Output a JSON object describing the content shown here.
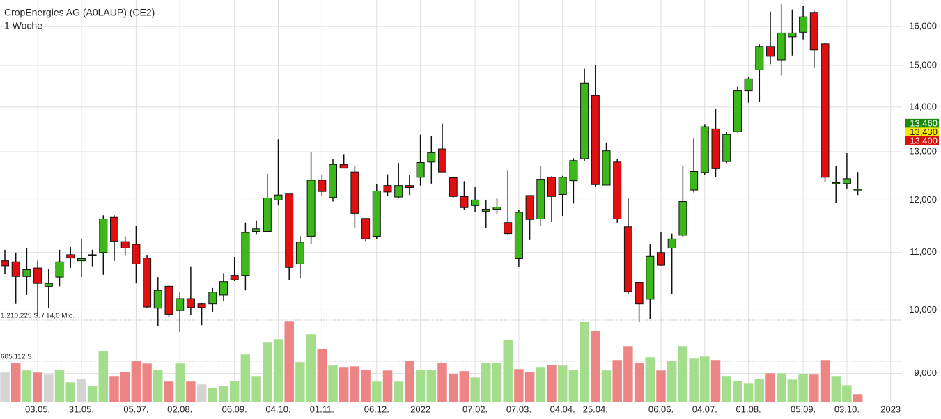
{
  "chart_data": {
    "type": "candlestick",
    "title": "CropEnergies AG (A0LAUP) (CE2)",
    "subtitle": "1 Woche",
    "log_scale": true,
    "grid": true,
    "up_color": "#3cb81a",
    "down_color": "#e01010",
    "categories": [
      null,
      null,
      null,
      "03.05.",
      null,
      null,
      null,
      "31.05.",
      null,
      null,
      null,
      null,
      "05.07.",
      null,
      null,
      null,
      "02.08.",
      null,
      null,
      null,
      null,
      "06.09.",
      null,
      null,
      null,
      "04.10.",
      null,
      null,
      null,
      "01.11.",
      null,
      null,
      null,
      null,
      "06.12.",
      null,
      null,
      null,
      "2022",
      null,
      null,
      null,
      null,
      "07.02.",
      null,
      null,
      null,
      "07.03.",
      null,
      null,
      null,
      "04.04.",
      null,
      null,
      "25.04.",
      null,
      null,
      null,
      null,
      null,
      "06.06.",
      null,
      null,
      null,
      "04.07.",
      null,
      null,
      null,
      "01.08.",
      null,
      null,
      null,
      null,
      "05.09.",
      null,
      null,
      null,
      "03.10.",
      null,
      null,
      null,
      "2023"
    ],
    "open": [
      10850,
      10830,
      10570,
      10720,
      10400,
      10560,
      10960,
      10850,
      10960,
      11000,
      11660,
      11200,
      11150,
      10900,
      10030,
      10400,
      9990,
      10190,
      10100,
      10100,
      10250,
      10590,
      10590,
      11390,
      11390,
      12000,
      12120,
      10790,
      11300,
      12400,
      12050,
      12730,
      12570,
      11640,
      11300,
      12290,
      12060,
      12290,
      12460,
      12780,
      13060,
      12450,
      12070,
      11890,
      11780,
      11820,
      11560,
      10890,
      12090,
      11630,
      12460,
      12110,
      12390,
      12850,
      14270,
      12300,
      12780,
      11480,
      10470,
      10180,
      11000,
      11080,
      11320,
      12200,
      12560,
      13500,
      12790,
      13440,
      14380,
      14890,
      15480,
      15140,
      15730,
      15850,
      16380,
      15550,
      12330,
      12330,
      12220,
      null,
      null,
      null
    ],
    "high": [
      11050,
      11000,
      11080,
      10850,
      10700,
      11050,
      11100,
      11250,
      11050,
      11700,
      11700,
      11300,
      11500,
      10950,
      10560,
      10410,
      10300,
      10750,
      10120,
      10370,
      10630,
      10920,
      11560,
      11600,
      12530,
      13270,
      12120,
      11300,
      13000,
      12500,
      12840,
      12950,
      12690,
      11640,
      12320,
      12520,
      12760,
      12500,
      13370,
      13350,
      13620,
      12470,
      12380,
      12270,
      12000,
      12030,
      12610,
      11800,
      12090,
      12700,
      12480,
      12490,
      12860,
      14920,
      15000,
      13200,
      12850,
      12030,
      10480,
      11160,
      11380,
      11350,
      12700,
      13300,
      13610,
      13960,
      13440,
      14480,
      14720,
      15540,
      16400,
      16600,
      16460,
      16550,
      16420,
      15570,
      12700,
      12970,
      12570,
      null,
      null,
      null
    ],
    "low": [
      10620,
      10100,
      10250,
      9920,
      10030,
      10400,
      10720,
      10560,
      10750,
      10600,
      10850,
      10940,
      10450,
      10030,
      9730,
      9880,
      9640,
      9920,
      9750,
      9970,
      10150,
      10490,
      10330,
      11340,
      11380,
      11900,
      10510,
      10540,
      11150,
      12080,
      11970,
      12650,
      11460,
      11210,
      11250,
      12080,
      12030,
      12100,
      12290,
      12330,
      12570,
      12050,
      11810,
      11760,
      11450,
      11730,
      11320,
      10740,
      11230,
      11500,
      11570,
      11690,
      11930,
      12800,
      12260,
      12300,
      11560,
      10260,
      9810,
      9850,
      10760,
      10260,
      11290,
      12150,
      12510,
      12460,
      12760,
      13420,
      14100,
      14120,
      15030,
      14750,
      15250,
      15660,
      14930,
      12370,
      11940,
      12230,
      12100,
      null,
      null,
      null
    ],
    "close": [
      10760,
      10570,
      10690,
      10450,
      10450,
      10830,
      10900,
      10890,
      10940,
      11630,
      11210,
      11080,
      10790,
      10050,
      10330,
      9930,
      10190,
      10040,
      10040,
      10300,
      10480,
      10510,
      11370,
      11440,
      12040,
      12100,
      10730,
      11190,
      12400,
      12170,
      12730,
      12650,
      11740,
      11250,
      12180,
      12160,
      12290,
      12250,
      12770,
      12980,
      12570,
      12070,
      11850,
      12000,
      11820,
      11860,
      11350,
      11760,
      11620,
      12420,
      12070,
      12460,
      12810,
      14570,
      12310,
      13020,
      11630,
      10310,
      10100,
      10930,
      10770,
      11250,
      11970,
      12580,
      13550,
      12640,
      13380,
      14380,
      14670,
      15480,
      15230,
      15830,
      15830,
      16260,
      15390,
      12460,
      12350,
      12430,
      12220,
      null,
      null,
      null
    ],
    "ylim": [
      8580,
      16720
    ],
    "yticks": [
      {
        "value": 9000,
        "label": "9,000"
      },
      {
        "value": 10000,
        "label": "10,000"
      },
      {
        "value": 11000,
        "label": "11,000"
      },
      {
        "value": 12000,
        "label": "12,000"
      },
      {
        "value": 13000,
        "label": "13,000"
      },
      {
        "value": 14000,
        "label": "14,000"
      },
      {
        "value": 15000,
        "label": "15,000"
      },
      {
        "value": 16000,
        "label": "16,000"
      }
    ],
    "price_markers": [
      {
        "value": 13460,
        "label": "13,460",
        "color": "#1a8a10",
        "text_color": "#ffffff"
      },
      {
        "value": 13430,
        "label": "13,430",
        "color": "#f5e800",
        "text_color": "#222222"
      },
      {
        "value": 13400,
        "label": "13,400",
        "color": "#d81010",
        "text_color": "#ffffff"
      }
    ],
    "volume": {
      "values": [
        441000,
        585000,
        472000,
        441000,
        410000,
        482000,
        297000,
        349000,
        246000,
        759000,
        390000,
        451000,
        615000,
        574000,
        482000,
        308000,
        574000,
        308000,
        267000,
        215000,
        246000,
        318000,
        708000,
        390000,
        882000,
        933000,
        1200000,
        595000,
        1005000,
        790000,
        544000,
        513000,
        533000,
        482000,
        308000,
        472000,
        308000,
        615000,
        482000,
        482000,
        585000,
        420000,
        462000,
        369000,
        585000,
        585000,
        923000,
        492000,
        451000,
        513000,
        554000,
        544000,
        482000,
        1190000,
        1056000,
        472000,
        626000,
        831000,
        585000,
        667000,
        472000,
        615000,
        831000,
        646000,
        677000,
        626000,
        390000,
        318000,
        287000,
        349000,
        431000,
        431000,
        338000,
        420000,
        410000,
        626000,
        390000,
        256000,
        123000,
        null,
        null,
        null
      ],
      "colors": [
        "#d4d4d4",
        "#ee8585",
        "#a4dd8c",
        "#ee8585",
        "#d4d4d4",
        "#a4dd8c",
        "#a4dd8c",
        "#d4d4d4",
        "#a4dd8c",
        "#a4dd8c",
        "#ee8585",
        "#ee8585",
        "#ee8585",
        "#ee8585",
        "#a4dd8c",
        "#ee8585",
        "#a4dd8c",
        "#ee8585",
        "#d4d4d4",
        "#a4dd8c",
        "#a4dd8c",
        "#a4dd8c",
        "#a4dd8c",
        "#a4dd8c",
        "#a4dd8c",
        "#a4dd8c",
        "#ee8585",
        "#a4dd8c",
        "#a4dd8c",
        "#ee8585",
        "#a4dd8c",
        "#ee8585",
        "#ee8585",
        "#ee8585",
        "#a4dd8c",
        "#ee8585",
        "#a4dd8c",
        "#ee8585",
        "#a4dd8c",
        "#a4dd8c",
        "#ee8585",
        "#ee8585",
        "#ee8585",
        "#a4dd8c",
        "#a4dd8c",
        "#a4dd8c",
        "#a4dd8c",
        "#ee8585",
        "#ee8585",
        "#a4dd8c",
        "#ee8585",
        "#a4dd8c",
        "#a4dd8c",
        "#a4dd8c",
        "#ee8585",
        "#a4dd8c",
        "#ee8585",
        "#ee8585",
        "#ee8585",
        "#a4dd8c",
        "#ee8585",
        "#a4dd8c",
        "#a4dd8c",
        "#a4dd8c",
        "#a4dd8c",
        "#ee8585",
        "#a4dd8c",
        "#a4dd8c",
        "#a4dd8c",
        "#a4dd8c",
        "#ee8585",
        "#a4dd8c",
        "#a4dd8c",
        "#a4dd8c",
        "#ee8585",
        "#ee8585",
        "#a4dd8c",
        "#a4dd8c",
        "#ee8585",
        null,
        null,
        null
      ],
      "lim": [
        0,
        1210225
      ],
      "ticks": [
        {
          "value": 605112,
          "label": "605.112 S."
        },
        {
          "value": 1210225,
          "label": "1.210.225 S. / 14,0 Mio."
        }
      ]
    }
  }
}
